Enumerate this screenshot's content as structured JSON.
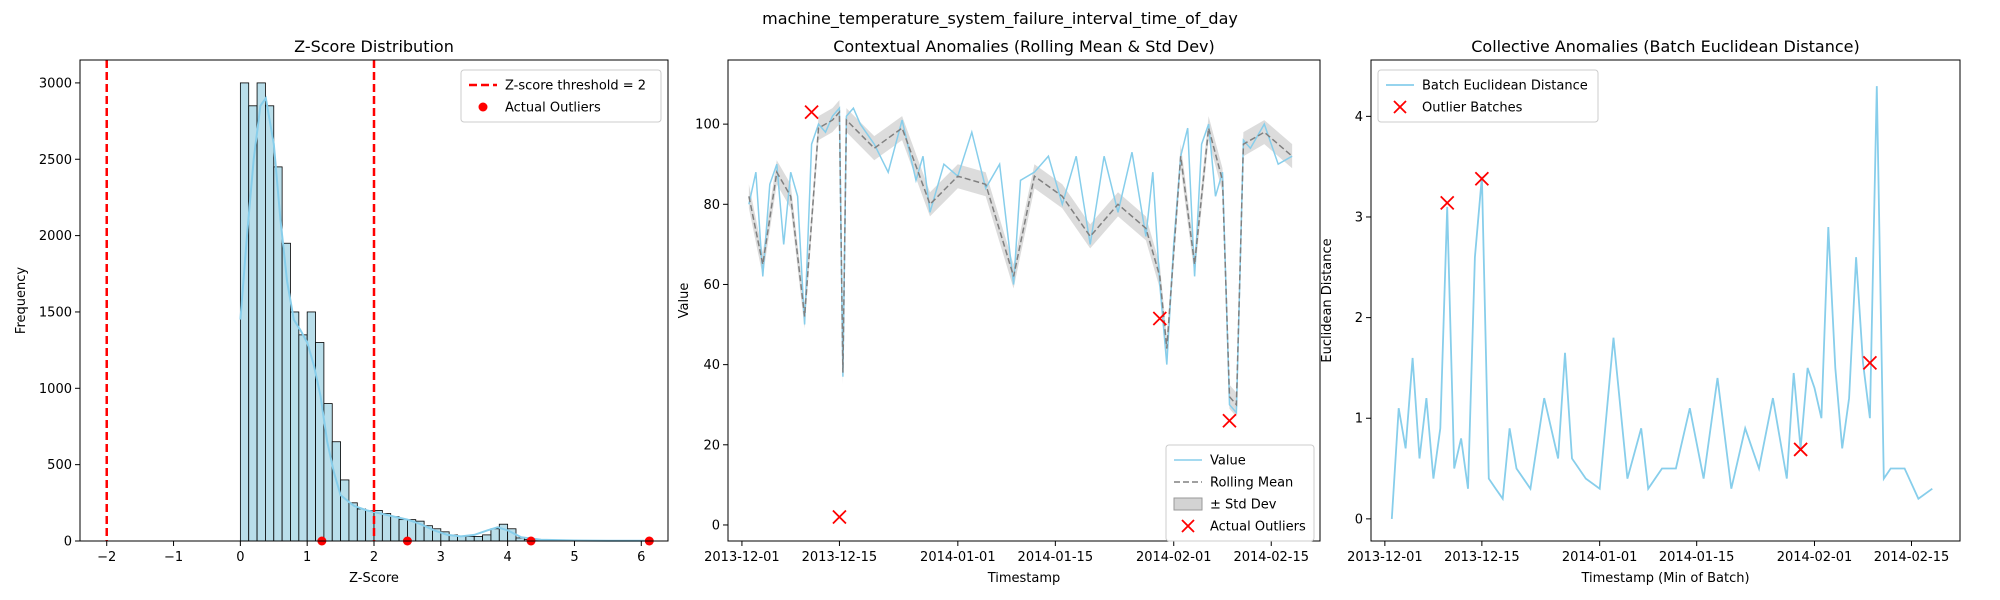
{
  "suptitle": "machine_temperature_system_failure_interval_time_of_day",
  "chart_data": [
    {
      "type": "histogram",
      "title": "Z-Score Distribution",
      "xlabel": "Z-Score",
      "ylabel": "Frequency",
      "xlim": [
        -2.4,
        6.4
      ],
      "ylim": [
        0,
        3150
      ],
      "xticks": [
        -2,
        -1,
        0,
        1,
        2,
        3,
        4,
        5,
        6
      ],
      "xtick_labels": [
        "−2",
        "−1",
        "0",
        "1",
        "2",
        "3",
        "4",
        "5",
        "6"
      ],
      "yticks": [
        0,
        500,
        1000,
        1500,
        2000,
        2500,
        3000
      ],
      "bin_start": 0,
      "bin_width": 0.125,
      "bin_counts": [
        3000,
        2850,
        3000,
        2850,
        2450,
        1950,
        1500,
        1350,
        1500,
        1300,
        900,
        650,
        400,
        250,
        210,
        200,
        200,
        180,
        160,
        140,
        140,
        130,
        100,
        80,
        60,
        40,
        30,
        30,
        30,
        40,
        80,
        110,
        80,
        20,
        10,
        8,
        5,
        3,
        2,
        1,
        1,
        1,
        1,
        1,
        1,
        1,
        1,
        1,
        1
      ],
      "kde": [
        [
          0.0,
          1450
        ],
        [
          0.1,
          2000
        ],
        [
          0.2,
          2500
        ],
        [
          0.3,
          2850
        ],
        [
          0.38,
          2900
        ],
        [
          0.5,
          2600
        ],
        [
          0.6,
          2100
        ],
        [
          0.7,
          1700
        ],
        [
          0.8,
          1450
        ],
        [
          0.9,
          1380
        ],
        [
          1.0,
          1300
        ],
        [
          1.1,
          1150
        ],
        [
          1.2,
          950
        ],
        [
          1.3,
          650
        ],
        [
          1.4,
          450
        ],
        [
          1.5,
          300
        ],
        [
          1.7,
          230
        ],
        [
          1.9,
          200
        ],
        [
          2.1,
          180
        ],
        [
          2.3,
          160
        ],
        [
          2.5,
          140
        ],
        [
          2.7,
          110
        ],
        [
          2.9,
          70
        ],
        [
          3.1,
          40
        ],
        [
          3.3,
          30
        ],
        [
          3.5,
          40
        ],
        [
          3.7,
          70
        ],
        [
          3.85,
          90
        ],
        [
          4.0,
          70
        ],
        [
          4.2,
          25
        ],
        [
          4.5,
          8
        ],
        [
          5.0,
          3
        ],
        [
          5.5,
          2
        ],
        [
          6.1,
          1
        ]
      ],
      "series": [
        {
          "name": "Z-score threshold = 2",
          "style": "dashed",
          "color": "#ff0000",
          "x": [
            -2,
            2
          ]
        },
        {
          "name": "Actual Outliers",
          "style": "points",
          "color": "#ff0000",
          "x": [
            1.22,
            2.5,
            4.35,
            6.12
          ],
          "y": [
            0,
            0,
            0,
            0
          ]
        }
      ],
      "legend": "top-right",
      "colors": {
        "bar": "#add8e6",
        "kde": "#87ceeb"
      }
    },
    {
      "type": "line",
      "title": "Contextual Anomalies (Rolling Mean & Std Dev)",
      "xlabel": "Timestamp",
      "ylabel": "Value",
      "xlim": [
        "2013-11-29",
        "2014-02-22"
      ],
      "ylim": [
        -4,
        116
      ],
      "xticks": [
        "2013-12-01",
        "2013-12-15",
        "2014-01-01",
        "2014-01-15",
        "2014-02-01",
        "2014-02-15"
      ],
      "yticks": [
        0,
        20,
        40,
        60,
        80,
        100
      ],
      "series": [
        {
          "name": "Value",
          "color": "#87ceeb",
          "x": [
            "2013-12-02",
            "2013-12-03",
            "2013-12-04",
            "2013-12-05",
            "2013-12-06",
            "2013-12-07",
            "2013-12-08",
            "2013-12-09",
            "2013-12-10",
            "2013-12-11",
            "2013-12-12",
            "2013-12-13",
            "2013-12-14",
            "2013-12-15",
            "2013-12-15T12",
            "2013-12-16",
            "2013-12-17",
            "2013-12-18",
            "2013-12-20",
            "2013-12-22",
            "2013-12-24",
            "2013-12-26",
            "2013-12-27",
            "2013-12-28",
            "2013-12-30",
            "2014-01-01",
            "2014-01-03",
            "2014-01-05",
            "2014-01-07",
            "2014-01-09",
            "2014-01-10",
            "2014-01-12",
            "2014-01-14",
            "2014-01-16",
            "2014-01-18",
            "2014-01-20",
            "2014-01-22",
            "2014-01-24",
            "2014-01-26",
            "2014-01-28",
            "2014-01-29",
            "2014-01-30",
            "2014-01-31",
            "2014-02-01",
            "2014-02-02",
            "2014-02-03",
            "2014-02-04",
            "2014-02-05",
            "2014-02-06",
            "2014-02-07",
            "2014-02-08",
            "2014-02-09",
            "2014-02-10",
            "2014-02-11",
            "2014-02-12",
            "2014-02-14",
            "2014-02-16",
            "2014-02-18"
          ],
          "y": [
            80,
            88,
            62,
            85,
            90,
            70,
            88,
            82,
            50,
            95,
            100,
            98,
            102,
            104,
            37,
            102,
            104,
            100,
            95,
            88,
            101,
            86,
            92,
            78,
            90,
            87,
            98,
            84,
            90,
            60,
            86,
            88,
            92,
            80,
            92,
            70,
            92,
            78,
            93,
            72,
            88,
            60,
            40,
            70,
            92,
            99,
            62,
            95,
            100,
            82,
            88,
            30,
            28,
            96,
            94,
            100,
            90,
            92
          ]
        },
        {
          "name": "Rolling Mean",
          "style": "dashed",
          "color": "#808080",
          "x": [
            "2013-12-02",
            "2013-12-04",
            "2013-12-06",
            "2013-12-08",
            "2013-12-10",
            "2013-12-12",
            "2013-12-14",
            "2013-12-15",
            "2013-12-15T12",
            "2013-12-16",
            "2013-12-20",
            "2013-12-24",
            "2013-12-28",
            "2014-01-01",
            "2014-01-05",
            "2014-01-09",
            "2014-01-12",
            "2014-01-16",
            "2014-01-20",
            "2014-01-24",
            "2014-01-28",
            "2014-01-30",
            "2014-01-31",
            "2014-02-02",
            "2014-02-04",
            "2014-02-06",
            "2014-02-08",
            "2014-02-09",
            "2014-02-10",
            "2014-02-11",
            "2014-02-14",
            "2014-02-18"
          ],
          "y": [
            82,
            65,
            88,
            82,
            52,
            99,
            101,
            103,
            38,
            101,
            94,
            99,
            80,
            87,
            85,
            62,
            87,
            82,
            72,
            80,
            74,
            62,
            44,
            92,
            65,
            99,
            86,
            32,
            30,
            95,
            98,
            92
          ]
        },
        {
          "name": "± Std Dev",
          "style": "band",
          "color": "#d3d3d3",
          "half_width": 3
        },
        {
          "name": "Actual Outliers",
          "style": "x-markers",
          "color": "#ff0000",
          "x": [
            "2013-12-11",
            "2013-12-15",
            "2014-01-30",
            "2014-02-09"
          ],
          "y": [
            103,
            2,
            51.5,
            26
          ]
        }
      ],
      "legend": "bottom-right"
    },
    {
      "type": "line",
      "title": "Collective Anomalies (Batch Euclidean Distance)",
      "xlabel": "Timestamp (Min of Batch)",
      "ylabel": "Euclidean Distance",
      "xlim": [
        "2013-11-29",
        "2014-02-22"
      ],
      "ylim": [
        -0.22,
        4.56
      ],
      "xticks": [
        "2013-12-01",
        "2013-12-15",
        "2014-01-01",
        "2014-01-15",
        "2014-02-01",
        "2014-02-15"
      ],
      "yticks": [
        0,
        1,
        2,
        3,
        4
      ],
      "series": [
        {
          "name": "Batch Euclidean Distance",
          "color": "#87ceeb",
          "x": [
            "2013-12-02",
            "2013-12-03",
            "2013-12-04",
            "2013-12-05",
            "2013-12-06",
            "2013-12-07",
            "2013-12-08",
            "2013-12-09",
            "2013-12-10",
            "2013-12-11",
            "2013-12-12",
            "2013-12-13",
            "2013-12-14",
            "2013-12-15",
            "2013-12-16",
            "2013-12-17",
            "2013-12-18",
            "2013-12-19",
            "2013-12-20",
            "2013-12-22",
            "2013-12-24",
            "2013-12-26",
            "2013-12-27",
            "2013-12-28",
            "2013-12-30",
            "2014-01-01",
            "2014-01-03",
            "2014-01-05",
            "2014-01-07",
            "2014-01-08",
            "2014-01-10",
            "2014-01-12",
            "2014-01-14",
            "2014-01-16",
            "2014-01-18",
            "2014-01-20",
            "2014-01-22",
            "2014-01-24",
            "2014-01-26",
            "2014-01-28",
            "2014-01-29",
            "2014-01-30",
            "2014-01-31",
            "2014-02-01",
            "2014-02-02",
            "2014-02-03",
            "2014-02-04",
            "2014-02-05",
            "2014-02-06",
            "2014-02-07",
            "2014-02-08",
            "2014-02-09",
            "2014-02-10",
            "2014-02-11",
            "2014-02-12",
            "2014-02-14",
            "2014-02-16",
            "2014-02-18"
          ],
          "y": [
            0.0,
            1.1,
            0.7,
            1.6,
            0.6,
            1.2,
            0.4,
            0.9,
            3.1,
            0.5,
            0.8,
            0.3,
            2.6,
            3.4,
            0.4,
            0.3,
            0.2,
            0.9,
            0.5,
            0.3,
            1.2,
            0.6,
            1.65,
            0.6,
            0.4,
            0.3,
            1.8,
            0.4,
            0.9,
            0.3,
            0.5,
            0.5,
            1.1,
            0.4,
            1.4,
            0.3,
            0.9,
            0.5,
            1.2,
            0.4,
            1.45,
            0.7,
            1.5,
            1.3,
            1.0,
            2.9,
            1.5,
            0.7,
            1.2,
            2.6,
            1.55,
            1.0,
            4.3,
            0.4,
            0.5,
            0.5,
            0.2,
            0.3
          ]
        },
        {
          "name": "Outlier Batches",
          "style": "x-markers",
          "color": "#ff0000",
          "x": [
            "2013-12-10",
            "2013-12-15",
            "2014-01-30",
            "2014-02-09"
          ],
          "y": [
            3.14,
            3.38,
            0.69,
            1.55
          ]
        }
      ],
      "legend": "top-left"
    }
  ]
}
